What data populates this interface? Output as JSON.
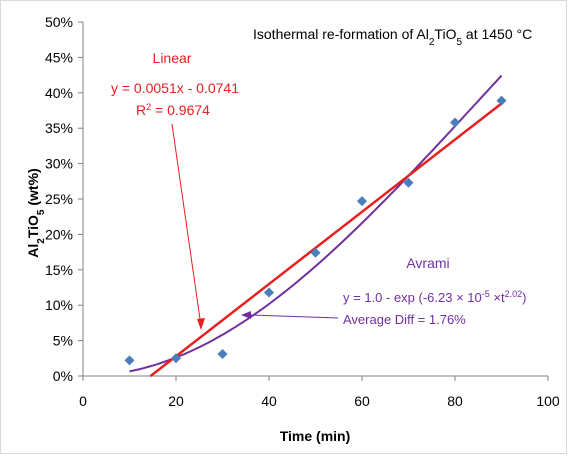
{
  "colors": {
    "linear": "#e8201f",
    "avrami": "#7030a0",
    "points": "#4a7ebb",
    "axis": "#808080",
    "text": "#000000"
  },
  "chart_data": {
    "type": "scatter",
    "title": {
      "prefix": "Isothermal re-formation of Al",
      "sub1": "2",
      "mid": "TiO",
      "sub2": "5",
      "suffix": " at 1450 °C"
    },
    "xlabel": "Time (min)",
    "ylabel": {
      "prefix": "Al",
      "sub1": "2",
      "mid": "TiO",
      "sub2": "5",
      "suffix": " (wt%)"
    },
    "xlim": [
      0,
      100
    ],
    "ylim": [
      0,
      0.5
    ],
    "x_ticks": [
      0,
      20,
      40,
      60,
      80,
      100
    ],
    "y_ticks": [
      0,
      0.05,
      0.1,
      0.15,
      0.2,
      0.25,
      0.3,
      0.35,
      0.4,
      0.45,
      0.5
    ],
    "y_tick_labels": [
      "0%",
      "5%",
      "10%",
      "15%",
      "20%",
      "25%",
      "30%",
      "35%",
      "40%",
      "45%",
      "50%"
    ],
    "grid": false,
    "points": [
      {
        "x": 10,
        "y": 0.022
      },
      {
        "x": 20,
        "y": 0.025
      },
      {
        "x": 30,
        "y": 0.031
      },
      {
        "x": 40,
        "y": 0.118
      },
      {
        "x": 50,
        "y": 0.174
      },
      {
        "x": 60,
        "y": 0.247
      },
      {
        "x": 70,
        "y": 0.273
      },
      {
        "x": 80,
        "y": 0.358
      },
      {
        "x": 90,
        "y": 0.389
      }
    ],
    "linear_fit": {
      "label": "Linear",
      "slope": 0.0051,
      "intercept": -0.0741,
      "x_range": [
        14.5,
        90
      ],
      "equation": "y = 0.0051x - 0.0741",
      "r2_prefix": "R",
      "r2_sup": "2",
      "r2_suffix": " = 0.9674"
    },
    "avrami_fit": {
      "label": "Avrami",
      "k": 6.23e-05,
      "n": 2.02,
      "x_range": [
        10,
        90
      ],
      "eq_prefix": "y = 1.0 - exp (-6.23 × 10",
      "eq_sup1": "-5",
      "eq_mid": " ×t",
      "eq_sup2": "2.02",
      "eq_suffix": ")",
      "avg_diff": "Average Diff = 1.76%"
    }
  }
}
